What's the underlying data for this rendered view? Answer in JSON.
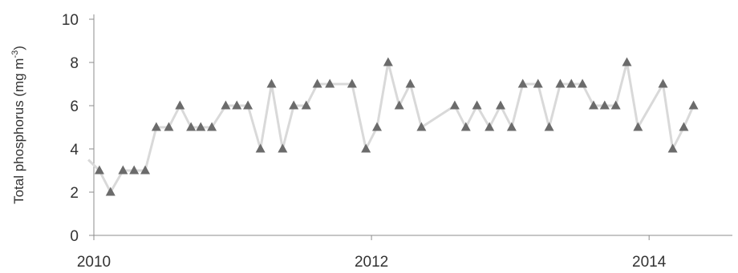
{
  "chart_data": {
    "type": "line",
    "title": "",
    "xlabel": "",
    "ylabel": "Total phosphorus (mg m",
    "ylabel_sup": "-3",
    "ylabel_close": ")",
    "xlim": [
      2010,
      2014.6
    ],
    "ylim": [
      0,
      10
    ],
    "yticks": [
      0,
      2,
      4,
      6,
      8,
      10
    ],
    "xticks": [
      2010,
      2012,
      2014
    ],
    "ytick_labels": [
      "0",
      "2",
      "4",
      "6",
      "8",
      "10"
    ],
    "xtick_labels": [
      "2010",
      "2012",
      "2014"
    ],
    "grid": false,
    "series": [
      {
        "line_color": "#d9d9d9",
        "marker_color": "#6b6b6b",
        "marker": "triangle",
        "x": [
          2009.96,
          2010.04,
          2010.12,
          2010.21,
          2010.29,
          2010.37,
          2010.45,
          2010.54,
          2010.62,
          2010.7,
          2010.77,
          2010.85,
          2010.95,
          2011.03,
          2011.11,
          2011.2,
          2011.28,
          2011.36,
          2011.44,
          2011.53,
          2011.61,
          2011.7,
          2011.86,
          2011.96,
          2012.04,
          2012.12,
          2012.2,
          2012.28,
          2012.36,
          2012.6,
          2012.68,
          2012.76,
          2012.85,
          2012.93,
          2013.01,
          2013.09,
          2013.2,
          2013.28,
          2013.36,
          2013.44,
          2013.52,
          2013.6,
          2013.68,
          2013.76,
          2013.84,
          2013.92,
          2014.1,
          2014.17,
          2014.25,
          2014.32
        ],
        "y": [
          3.5,
          3.0,
          2.0,
          3.0,
          3.0,
          3.0,
          5.0,
          5.0,
          6.0,
          5.0,
          5.0,
          5.0,
          6.0,
          6.0,
          6.0,
          4.0,
          7.0,
          4.0,
          6.0,
          6.0,
          7.0,
          7.0,
          7.0,
          4.0,
          5.0,
          8.0,
          6.0,
          7.0,
          5.0,
          6.0,
          5.0,
          6.0,
          5.0,
          6.0,
          5.0,
          7.0,
          7.0,
          5.0,
          7.0,
          7.0,
          7.0,
          6.0,
          6.0,
          6.0,
          8.0,
          5.0,
          7.0,
          4.0,
          5.0,
          6.0
        ],
        "markers": [
          false,
          true,
          true,
          true,
          true,
          true,
          true,
          true,
          true,
          true,
          true,
          true,
          true,
          true,
          true,
          true,
          true,
          true,
          true,
          true,
          true,
          true,
          true,
          true,
          true,
          true,
          true,
          true,
          true,
          true,
          true,
          true,
          true,
          true,
          true,
          true,
          true,
          true,
          true,
          true,
          true,
          true,
          true,
          true,
          true,
          true,
          true,
          true,
          true,
          true
        ]
      }
    ]
  }
}
